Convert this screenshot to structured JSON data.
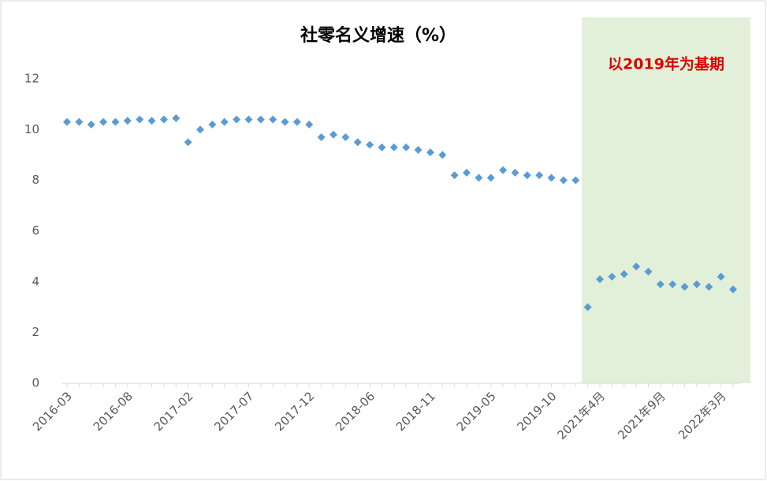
{
  "chart_data": {
    "type": "scatter",
    "title": "社零名义增速（%）",
    "annotation": "以2019年为基期",
    "categories": [
      "2016-03",
      null,
      null,
      null,
      null,
      "2016-08",
      null,
      null,
      null,
      null,
      "2017-02",
      null,
      null,
      null,
      null,
      "2017-07",
      null,
      null,
      null,
      null,
      "2017-12",
      null,
      null,
      null,
      null,
      "2018-06",
      null,
      null,
      null,
      null,
      "2018-11",
      null,
      null,
      null,
      null,
      "2019-05",
      null,
      null,
      null,
      null,
      "2019-10",
      null,
      null,
      null,
      "2021年4月",
      null,
      null,
      null,
      null,
      "2021年9月",
      null,
      null,
      null,
      null,
      "2022年3月",
      null
    ],
    "series": [
      {
        "color": "#5b9bd5",
        "values": [
          10.3,
          10.3,
          10.2,
          10.3,
          10.3,
          10.35,
          10.4,
          10.35,
          10.4,
          10.45,
          9.5,
          10.0,
          10.2,
          10.3,
          10.4,
          10.4,
          10.4,
          10.4,
          10.3,
          10.3,
          10.2,
          9.7,
          9.8,
          9.7,
          9.5,
          9.4,
          9.3,
          9.3,
          9.3,
          9.2,
          9.1,
          9.0,
          8.2,
          8.3,
          8.1,
          8.1,
          8.4,
          8.3,
          8.2,
          8.2,
          8.1,
          8.0,
          8.0,
          3.0,
          4.1,
          4.2,
          4.3,
          4.6,
          4.4,
          3.9,
          3.9,
          3.8,
          3.9,
          3.8,
          4.2,
          3.7
        ]
      }
    ],
    "ylim": [
      0,
      12
    ],
    "yticks": [
      0,
      2,
      4,
      6,
      8,
      10,
      12
    ],
    "grid": false
  }
}
